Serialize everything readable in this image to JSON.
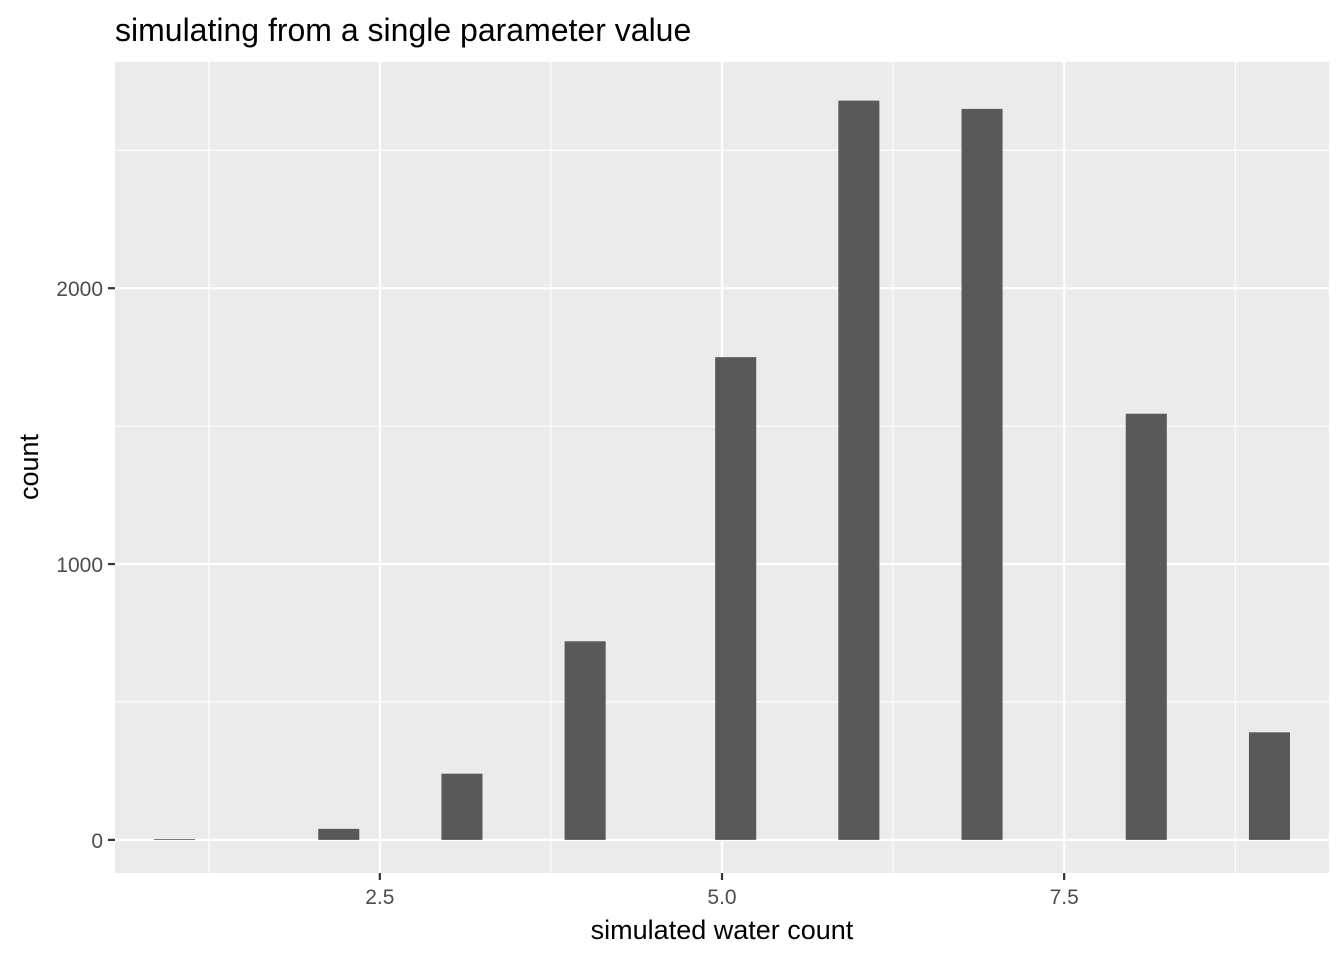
{
  "chart_data": {
    "type": "bar",
    "title": "simulating from a single parameter value",
    "xlabel": "simulated water count",
    "ylabel": "count",
    "xlim": [
      0.565,
      9.435
    ],
    "ylim": [
      -120,
      2820
    ],
    "x_major_ticks": [
      2.5,
      5.0,
      7.5
    ],
    "x_tick_labels": [
      "2.5",
      "5.0",
      "7.5"
    ],
    "x_minor_ticks": [
      1.25,
      3.75,
      6.25,
      8.75
    ],
    "y_major_ticks": [
      0,
      1000,
      2000
    ],
    "y_tick_labels": [
      "0",
      "1000",
      "2000"
    ],
    "y_minor_ticks": [
      500,
      1500,
      2500
    ],
    "bin_width": 0.3,
    "bars": [
      {
        "x": 1.0,
        "value": 2
      },
      {
        "x": 2.2,
        "value": 40
      },
      {
        "x": 3.1,
        "value": 240
      },
      {
        "x": 4.0,
        "value": 720
      },
      {
        "x": 5.1,
        "value": 1750
      },
      {
        "x": 6.0,
        "value": 2680
      },
      {
        "x": 6.9,
        "value": 2650
      },
      {
        "x": 8.1,
        "value": 1545
      },
      {
        "x": 9.0,
        "value": 390
      }
    ],
    "panel_background": "#ebebeb",
    "grid_color": "#ffffff",
    "bar_color": "#595959",
    "grid": true,
    "legend": "none"
  }
}
